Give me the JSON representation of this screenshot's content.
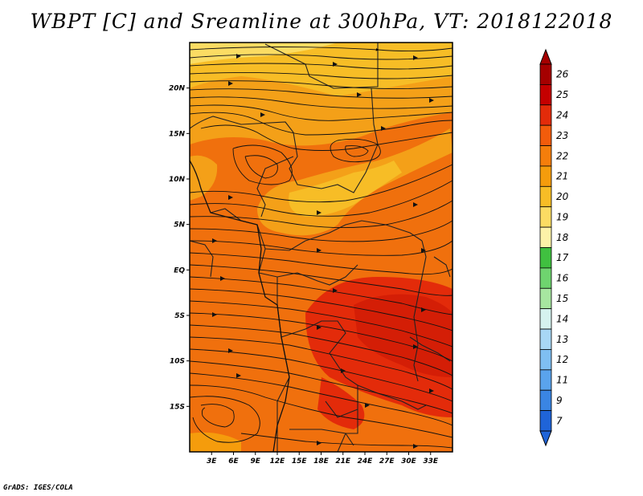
{
  "title": "WBPT [C] and Sreamline at 300hPa, VT: 2018122018",
  "credit": "GrADS: IGES/COLA",
  "map": {
    "lon_range": [
      0,
      36
    ],
    "lat_range": [
      -20,
      25
    ],
    "lon_ticks": [
      "3E",
      "6E",
      "9E",
      "12E",
      "15E",
      "18E",
      "21E",
      "24E",
      "27E",
      "30E",
      "33E"
    ],
    "lat_ticks": [
      "20N",
      "15N",
      "10N",
      "5N",
      "EQ",
      "5S",
      "10S",
      "15S"
    ]
  },
  "colorbar": {
    "labels": [
      "26",
      "25",
      "24",
      "23",
      "22",
      "21",
      "20",
      "19",
      "18",
      "17",
      "16",
      "15",
      "14",
      "13",
      "12",
      "11",
      "9",
      "7"
    ],
    "colors": [
      "#a50000",
      "#c40000",
      "#e32b0a",
      "#f25c0b",
      "#f57e0b",
      "#f59c0c",
      "#f7bd26",
      "#fbdc63",
      "#fdf2a8",
      "#40c040",
      "#6fd46f",
      "#a7e6a0",
      "#d5f2ef",
      "#a8d7f5",
      "#7fbff2",
      "#5aa3ec",
      "#3a85e3",
      "#1f64d8"
    ]
  }
}
